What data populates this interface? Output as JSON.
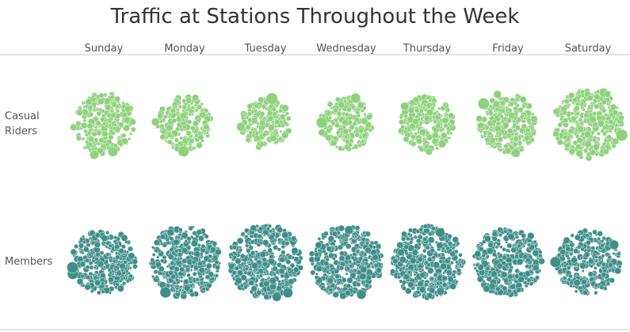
{
  "chart_data": {
    "type": "packed_bubble",
    "title": "Traffic at Stations Throughout the Week",
    "columns": [
      "Sunday",
      "Monday",
      "Tuesday",
      "Wednesday",
      "Thursday",
      "Friday",
      "Saturday"
    ],
    "rows": [
      {
        "name_lines": [
          "Casual",
          "Riders"
        ],
        "color": "#8fd17d",
        "relative_cluster_size": [
          1.0,
          0.88,
          0.8,
          0.84,
          0.88,
          0.95,
          1.12
        ]
      },
      {
        "name_lines": [
          "Members"
        ],
        "color": "#3f8f88",
        "relative_cluster_size": [
          1.0,
          1.1,
          1.13,
          1.1,
          1.12,
          1.05,
          1.0
        ]
      }
    ],
    "grid": false,
    "legend": "none"
  }
}
